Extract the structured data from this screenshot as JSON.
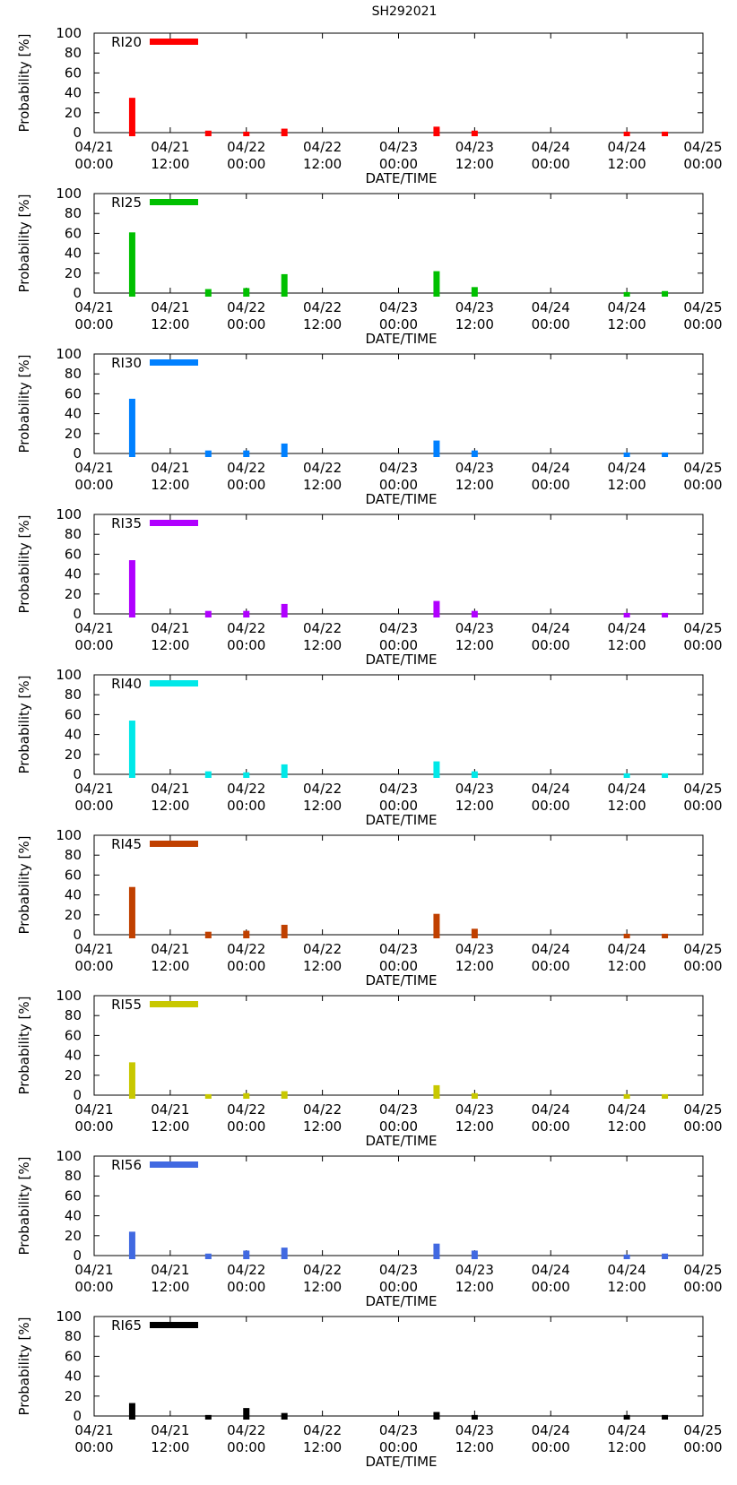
{
  "page_title": "SH292021",
  "chart_data": [
    {
      "type": "bar",
      "title": "SH292021",
      "legend": "RI20",
      "color": "#ff0000",
      "xlabel": "DATE/TIME",
      "ylabel": "Probability [%]",
      "ylim": [
        0,
        100
      ],
      "yticks": [
        "0",
        "20",
        "40",
        "60",
        "80",
        "100"
      ],
      "xticks": [
        [
          "04/21",
          "00:00"
        ],
        [
          "04/21",
          "12:00"
        ],
        [
          "04/22",
          "00:00"
        ],
        [
          "04/22",
          "12:00"
        ],
        [
          "04/23",
          "00:00"
        ],
        [
          "04/23",
          "12:00"
        ],
        [
          "04/24",
          "00:00"
        ],
        [
          "04/24",
          "12:00"
        ],
        [
          "04/25",
          "00:00"
        ]
      ],
      "x_hours": [
        6,
        18,
        24,
        30,
        54,
        60,
        84,
        90
      ],
      "values": [
        35,
        2,
        1,
        4,
        6,
        2,
        1,
        1
      ]
    },
    {
      "type": "bar",
      "legend": "RI25",
      "color": "#00c000",
      "xlabel": "DATE/TIME",
      "ylabel": "Probability [%]",
      "ylim": [
        0,
        100
      ],
      "yticks": [
        "0",
        "20",
        "40",
        "60",
        "80",
        "100"
      ],
      "xticks": [
        [
          "04/21",
          "00:00"
        ],
        [
          "04/21",
          "12:00"
        ],
        [
          "04/22",
          "00:00"
        ],
        [
          "04/22",
          "12:00"
        ],
        [
          "04/23",
          "00:00"
        ],
        [
          "04/23",
          "12:00"
        ],
        [
          "04/24",
          "00:00"
        ],
        [
          "04/24",
          "12:00"
        ],
        [
          "04/25",
          "00:00"
        ]
      ],
      "x_hours": [
        6,
        18,
        24,
        30,
        54,
        60,
        84,
        90
      ],
      "values": [
        61,
        4,
        5,
        19,
        22,
        6,
        1,
        2
      ]
    },
    {
      "type": "bar",
      "legend": "RI30",
      "color": "#0080ff",
      "xlabel": "DATE/TIME",
      "ylabel": "Probability [%]",
      "ylim": [
        0,
        100
      ],
      "yticks": [
        "0",
        "20",
        "40",
        "60",
        "80",
        "100"
      ],
      "xticks": [
        [
          "04/21",
          "00:00"
        ],
        [
          "04/21",
          "12:00"
        ],
        [
          "04/22",
          "00:00"
        ],
        [
          "04/22",
          "12:00"
        ],
        [
          "04/23",
          "00:00"
        ],
        [
          "04/23",
          "12:00"
        ],
        [
          "04/24",
          "00:00"
        ],
        [
          "04/24",
          "12:00"
        ],
        [
          "04/25",
          "00:00"
        ]
      ],
      "x_hours": [
        6,
        18,
        24,
        30,
        54,
        60,
        84,
        90
      ],
      "values": [
        55,
        3,
        3,
        10,
        13,
        3,
        1,
        1
      ]
    },
    {
      "type": "bar",
      "legend": "RI35",
      "color": "#b000ff",
      "xlabel": "DATE/TIME",
      "ylabel": "Probability [%]",
      "ylim": [
        0,
        100
      ],
      "yticks": [
        "0",
        "20",
        "40",
        "60",
        "80",
        "100"
      ],
      "xticks": [
        [
          "04/21",
          "00:00"
        ],
        [
          "04/21",
          "12:00"
        ],
        [
          "04/22",
          "00:00"
        ],
        [
          "04/22",
          "12:00"
        ],
        [
          "04/23",
          "00:00"
        ],
        [
          "04/23",
          "12:00"
        ],
        [
          "04/24",
          "00:00"
        ],
        [
          "04/24",
          "12:00"
        ],
        [
          "04/25",
          "00:00"
        ]
      ],
      "x_hours": [
        6,
        18,
        24,
        30,
        54,
        60,
        84,
        90
      ],
      "values": [
        54,
        3,
        3,
        10,
        13,
        3,
        1,
        1
      ]
    },
    {
      "type": "bar",
      "legend": "RI40",
      "color": "#00e8e8",
      "xlabel": "DATE/TIME",
      "ylabel": "Probability [%]",
      "ylim": [
        0,
        100
      ],
      "yticks": [
        "0",
        "20",
        "40",
        "60",
        "80",
        "100"
      ],
      "xticks": [
        [
          "04/21",
          "00:00"
        ],
        [
          "04/21",
          "12:00"
        ],
        [
          "04/22",
          "00:00"
        ],
        [
          "04/22",
          "12:00"
        ],
        [
          "04/23",
          "00:00"
        ],
        [
          "04/23",
          "12:00"
        ],
        [
          "04/24",
          "00:00"
        ],
        [
          "04/24",
          "12:00"
        ],
        [
          "04/25",
          "00:00"
        ]
      ],
      "x_hours": [
        6,
        18,
        24,
        30,
        54,
        60,
        84,
        90
      ],
      "values": [
        54,
        3,
        2,
        10,
        13,
        3,
        1,
        1
      ]
    },
    {
      "type": "bar",
      "legend": "RI45",
      "color": "#c04000",
      "xlabel": "DATE/TIME",
      "ylabel": "Probability [%]",
      "ylim": [
        0,
        100
      ],
      "yticks": [
        "0",
        "20",
        "40",
        "60",
        "80",
        "100"
      ],
      "xticks": [
        [
          "04/21",
          "00:00"
        ],
        [
          "04/21",
          "12:00"
        ],
        [
          "04/22",
          "00:00"
        ],
        [
          "04/22",
          "12:00"
        ],
        [
          "04/23",
          "00:00"
        ],
        [
          "04/23",
          "12:00"
        ],
        [
          "04/24",
          "00:00"
        ],
        [
          "04/24",
          "12:00"
        ],
        [
          "04/25",
          "00:00"
        ]
      ],
      "x_hours": [
        6,
        18,
        24,
        30,
        54,
        60,
        84,
        90
      ],
      "values": [
        48,
        3,
        4,
        10,
        21,
        6,
        1,
        1
      ]
    },
    {
      "type": "bar",
      "legend": "RI55",
      "color": "#c8c800",
      "xlabel": "DATE/TIME",
      "ylabel": "Probability [%]",
      "ylim": [
        0,
        100
      ],
      "yticks": [
        "0",
        "20",
        "40",
        "60",
        "80",
        "100"
      ],
      "xticks": [
        [
          "04/21",
          "00:00"
        ],
        [
          "04/21",
          "12:00"
        ],
        [
          "04/22",
          "00:00"
        ],
        [
          "04/22",
          "12:00"
        ],
        [
          "04/23",
          "00:00"
        ],
        [
          "04/23",
          "12:00"
        ],
        [
          "04/24",
          "00:00"
        ],
        [
          "04/24",
          "12:00"
        ],
        [
          "04/25",
          "00:00"
        ]
      ],
      "x_hours": [
        6,
        18,
        24,
        30,
        54,
        60,
        84,
        90
      ],
      "values": [
        33,
        1,
        2,
        4,
        10,
        2,
        1,
        1
      ]
    },
    {
      "type": "bar",
      "legend": "RI56",
      "color": "#4169e1",
      "xlabel": "DATE/TIME",
      "ylabel": "Probability [%]",
      "ylim": [
        0,
        100
      ],
      "yticks": [
        "0",
        "20",
        "40",
        "60",
        "80",
        "100"
      ],
      "xticks": [
        [
          "04/21",
          "00:00"
        ],
        [
          "04/21",
          "12:00"
        ],
        [
          "04/22",
          "00:00"
        ],
        [
          "04/22",
          "12:00"
        ],
        [
          "04/23",
          "00:00"
        ],
        [
          "04/23",
          "12:00"
        ],
        [
          "04/24",
          "00:00"
        ],
        [
          "04/24",
          "12:00"
        ],
        [
          "04/25",
          "00:00"
        ]
      ],
      "x_hours": [
        6,
        18,
        24,
        30,
        54,
        60,
        84,
        90
      ],
      "values": [
        24,
        2,
        5,
        8,
        12,
        5,
        1,
        2
      ]
    },
    {
      "type": "bar",
      "legend": "RI65",
      "color": "#000000",
      "xlabel": "DATE/TIME",
      "ylabel": "Probability [%]",
      "ylim": [
        0,
        100
      ],
      "yticks": [
        "0",
        "20",
        "40",
        "60",
        "80",
        "100"
      ],
      "xticks": [
        [
          "04/21",
          "00:00"
        ],
        [
          "04/21",
          "12:00"
        ],
        [
          "04/22",
          "00:00"
        ],
        [
          "04/22",
          "12:00"
        ],
        [
          "04/23",
          "00:00"
        ],
        [
          "04/23",
          "12:00"
        ],
        [
          "04/24",
          "00:00"
        ],
        [
          "04/24",
          "12:00"
        ],
        [
          "04/25",
          "00:00"
        ]
      ],
      "x_hours": [
        6,
        18,
        24,
        30,
        54,
        60,
        84,
        90
      ],
      "values": [
        13,
        1,
        8,
        3,
        4,
        1,
        1,
        1
      ]
    }
  ]
}
